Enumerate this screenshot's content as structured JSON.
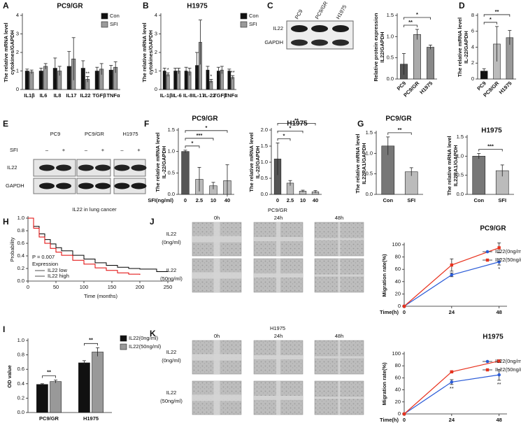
{
  "panel_labels": [
    "A",
    "B",
    "C",
    "D",
    "E",
    "F",
    "G",
    "H",
    "I",
    "J",
    "K"
  ],
  "blots": {
    "C": {
      "lanes": [
        "PC9",
        "PC9/GR",
        "H1975"
      ],
      "proteins": [
        "IL22",
        "GAPDH"
      ]
    },
    "E": {
      "lanes": [
        "PC9",
        "PC9/GR",
        "H1975"
      ],
      "treatment_label": "SFI",
      "treatment": [
        "–",
        "+",
        "–",
        "+",
        "–",
        "+"
      ],
      "proteins": [
        "IL22",
        "GAPDH"
      ]
    }
  },
  "wound_healing": [
    {
      "cell_line": "PC9/GR",
      "times": [
        "0h",
        "24h",
        "48h"
      ],
      "rows": [
        [
          "IL22",
          "(0ng/ml)"
        ],
        [
          "IL22",
          "(50ng/ml)"
        ]
      ]
    },
    {
      "cell_line": "H1975",
      "times": [
        "0h",
        "24h",
        "48h"
      ],
      "rows": [
        [
          "IL22",
          "(0ng/ml)"
        ],
        [
          "IL22",
          "(50ng/ml)"
        ]
      ]
    }
  ],
  "chart_data": [
    {
      "type": "bar",
      "title": "PC9/GR",
      "ylabel": [
        "The relative mRNA level",
        "cytokines/GAPDH"
      ],
      "categories": [
        "IL1β",
        "IL6",
        "IL8",
        "IL17",
        "IL22",
        "TGFβ",
        "TNFα"
      ],
      "series": [
        {
          "name": "Con",
          "color": "#111111",
          "values": [
            1.0,
            1.0,
            1.15,
            1.25,
            1.15,
            1.0,
            1.05
          ],
          "errors": [
            0.1,
            0.15,
            0.55,
            0.8,
            0.4,
            0.2,
            0.25
          ]
        },
        {
          "name": "SFI",
          "color": "#9a9a9a",
          "values": [
            0.95,
            1.25,
            1.0,
            1.65,
            0.55,
            1.1,
            1.2
          ],
          "errors": [
            0.1,
            0.15,
            0.25,
            1.15,
            0.15,
            0.3,
            0.3
          ]
        }
      ],
      "ylim": [
        0,
        4
      ],
      "yticks": [
        0,
        1,
        2,
        3,
        4
      ],
      "legend": "upper right",
      "annotation_style": "star",
      "annotations": [
        {
          "category": "IL22",
          "label": "**"
        }
      ]
    },
    {
      "type": "bar",
      "title": "H1975",
      "ylabel": [
        "The relative mRNA level",
        "cytokines/GAPDH"
      ],
      "categories": [
        "IL-1β",
        "IL-6",
        "IL-8",
        "IL-17",
        "IL-22",
        "TGFβ",
        "TNFα"
      ],
      "series": [
        {
          "name": "Con",
          "color": "#111111",
          "values": [
            1.0,
            1.0,
            1.0,
            1.3,
            1.05,
            1.0,
            1.0
          ],
          "errors": [
            0.15,
            0.15,
            0.2,
            0.7,
            0.2,
            0.2,
            0.1
          ]
        },
        {
          "name": "SFI",
          "color": "#9a9a9a",
          "values": [
            0.8,
            1.0,
            0.95,
            2.55,
            0.45,
            1.05,
            0.65
          ],
          "errors": [
            0.1,
            0.15,
            0.2,
            1.2,
            0.1,
            0.2,
            0.1
          ]
        }
      ],
      "ylim": [
        0,
        4
      ],
      "yticks": [
        0,
        1,
        2,
        3,
        4
      ],
      "legend": "outside right",
      "annotation_style": "star",
      "annotations": [
        {
          "category": "IL-1β",
          "label": "*"
        },
        {
          "category": "IL-22",
          "label": "*"
        },
        {
          "category": "TNFα",
          "label": "**"
        }
      ]
    },
    {
      "type": "bar",
      "ylabel": [
        "Relative protein expression",
        "IL22/GAPDH"
      ],
      "categories": [
        "PC9",
        "PC9/GR",
        "H1975"
      ],
      "values": [
        0.35,
        1.05,
        0.75
      ],
      "errors": [
        0.25,
        0.12,
        0.05
      ],
      "colors": [
        "#555555",
        "#aaaaaa",
        "#888888"
      ],
      "ylim": [
        0,
        1.5
      ],
      "yticks": [
        {
          "value": 0,
          "label": "0.0"
        },
        0.5,
        {
          "value": 1,
          "label": "1.0"
        },
        1.5
      ],
      "annotation_style": "bracket",
      "annotations": [
        {
          "category": "PC9/GR",
          "label": "**"
        },
        {
          "category": "H1975",
          "label": "*"
        }
      ]
    },
    {
      "type": "bar",
      "ylabel": [
        "The relative mRNA level",
        "IL-22/GAPDH"
      ],
      "categories": [
        "PC9",
        "PC9/GR",
        "H1975"
      ],
      "values": [
        1.0,
        4.4,
        5.2
      ],
      "errors": [
        0.3,
        2.2,
        0.9
      ],
      "colors": [
        "#111111",
        "#bbbbbb",
        "#999999"
      ],
      "ylim": [
        0,
        8
      ],
      "yticks": [
        0,
        2,
        4,
        6,
        8
      ],
      "annotation_style": "bracket",
      "annotations": [
        {
          "category": "PC9/GR",
          "label": "*"
        },
        {
          "category": "H1975",
          "label": "**"
        }
      ]
    },
    {
      "type": "bar",
      "title": "PC9/GR",
      "ylabel": [
        "The relative mRNA level",
        "IL-22/GAPDH"
      ],
      "xlabel": "SFI(ng/ml)",
      "categories": [
        "0",
        "2.5",
        "10",
        "40"
      ],
      "values": [
        1.0,
        0.35,
        0.2,
        0.32
      ],
      "errors": [
        0.03,
        0.28,
        0.08,
        0.37
      ],
      "colors": [
        "#555555",
        "#bbbbbb",
        "#bbbbbb",
        "#bbbbbb"
      ],
      "ylim": [
        0,
        1.5
      ],
      "yticks": [
        {
          "value": 0,
          "label": "0.0"
        },
        0.5,
        {
          "value": 1,
          "label": "1.0"
        },
        1.5
      ],
      "annotation_style": "bracket",
      "annotations": [
        {
          "category": "2.5",
          "label": "*"
        },
        {
          "category": "10",
          "label": "***"
        },
        {
          "category": "40",
          "label": "*"
        }
      ]
    },
    {
      "type": "bar",
      "title": "H1975",
      "ylabel": [
        "The relative mRNA level",
        "IL-22/GAPDH"
      ],
      "categories": [
        "0",
        "2.5",
        "10",
        "40"
      ],
      "values": [
        1.1,
        0.35,
        0.1,
        0.08
      ],
      "errors": [
        0.5,
        0.08,
        0.03,
        0.04
      ],
      "colors": [
        "#555555",
        "#bbbbbb",
        "#bbbbbb",
        "#bbbbbb"
      ],
      "ylim": [
        0,
        2
      ],
      "yticks": [
        {
          "value": 0,
          "label": "0.0"
        },
        0.5,
        {
          "value": 1,
          "label": "1.0"
        },
        1.5,
        {
          "value": 2,
          "label": "2.0"
        }
      ],
      "annotation_style": "bracket",
      "annotations": [
        {
          "category": "2.5",
          "label": "*"
        },
        {
          "category": "10",
          "label": "*"
        },
        {
          "category": "40",
          "label": "**"
        }
      ]
    },
    {
      "type": "bar",
      "title": "PC9/GR",
      "ylabel": [
        "The relative mRNA level",
        "IL22RA1/GAPDH"
      ],
      "categories": [
        "Con",
        "SFI"
      ],
      "values": [
        1.18,
        0.55
      ],
      "errors": [
        0.22,
        0.1
      ],
      "colors": [
        "#777777",
        "#bbbbbb"
      ],
      "ylim": [
        0,
        1.5
      ],
      "yticks": [
        {
          "value": 0,
          "label": "0.0"
        },
        0.5,
        {
          "value": 1,
          "label": "1.0"
        },
        1.5
      ],
      "annotation_style": "bracket",
      "annotations": [
        {
          "category": "SFI",
          "label": "**"
        }
      ]
    },
    {
      "type": "bar",
      "title": "H1975",
      "ylabel": [
        "The relative mRNA level",
        "IL22RA1/GAPDH"
      ],
      "categories": [
        "Con",
        "SFI"
      ],
      "values": [
        1.0,
        0.62
      ],
      "errors": [
        0.07,
        0.15
      ],
      "colors": [
        "#777777",
        "#bbbbbb"
      ],
      "ylim": [
        0,
        1.5
      ],
      "yticks": [
        {
          "value": 0,
          "label": "0.0"
        },
        0.5,
        {
          "value": 1,
          "label": "1.0"
        },
        1.5
      ],
      "annotation_style": "bracket",
      "annotations": [
        {
          "category": "SFI",
          "label": "***"
        }
      ]
    },
    {
      "type": "line",
      "title": "IL22 in lung cancer",
      "xlabel": "Time (months)",
      "ylabel": [
        "Probability"
      ],
      "x": [
        0,
        10,
        20,
        30,
        40,
        50,
        60,
        80,
        100,
        120,
        140,
        160,
        180,
        200,
        230,
        250
      ],
      "series": [
        {
          "name": "IL22 low",
          "color": "#000000",
          "values": [
            1.0,
            0.87,
            0.75,
            0.66,
            0.59,
            0.53,
            0.48,
            0.41,
            0.35,
            0.29,
            0.25,
            0.22,
            0.2,
            0.19,
            0.15,
            0.15
          ]
        },
        {
          "name": "IL22 high",
          "color": "#e00000",
          "values": [
            1.0,
            0.84,
            0.7,
            0.6,
            0.52,
            0.46,
            0.41,
            0.33,
            0.27,
            0.21,
            0.17,
            0.13,
            0.11,
            0.1,
            null,
            null
          ]
        }
      ],
      "xlim": [
        0,
        260
      ],
      "ylim": [
        0,
        1
      ],
      "xticks": [
        0,
        50,
        100,
        150,
        200,
        250
      ],
      "yticks": [
        {
          "value": 0,
          "label": "0.0"
        },
        0.2,
        0.4,
        0.6,
        0.8,
        {
          "value": 1,
          "label": "1.0"
        }
      ],
      "step": true,
      "note": "P = 0.007",
      "legend_title": "Expression",
      "legend": "lower left"
    },
    {
      "type": "bar",
      "ylabel": [
        "OD value"
      ],
      "categories": [
        "PC9/GR",
        "H1975"
      ],
      "series": [
        {
          "name": "IL22(0ng/ml)",
          "color": "#111111",
          "values": [
            0.39,
            0.69
          ],
          "errors": [
            0.01,
            0.03
          ]
        },
        {
          "name": "IL22(50ng/ml)",
          "color": "#999999",
          "values": [
            0.43,
            0.84
          ],
          "errors": [
            0.02,
            0.06
          ]
        }
      ],
      "ylim": [
        0,
        1
      ],
      "yticks": [
        {
          "value": 0,
          "label": "0.0"
        },
        0.2,
        0.4,
        0.6,
        0.8,
        {
          "value": 1,
          "label": "1.0"
        }
      ],
      "legend": "outside right",
      "annotation_style": "bracket",
      "annotations": [
        {
          "category": "PC9/GR",
          "label": "**"
        },
        {
          "category": "H1975",
          "label": "**"
        }
      ]
    },
    {
      "type": "line",
      "title": "PC9/GR",
      "ylabel": [
        "Migration rate(%)"
      ],
      "xlabel": "Time(h)",
      "x": [
        0,
        24,
        48
      ],
      "series": [
        {
          "name": "IL22(0ng/ml)",
          "color": "#2a5bd7",
          "values": [
            0,
            51,
            72
          ],
          "errors": [
            0,
            3,
            5
          ]
        },
        {
          "name": "IL22(50ng/ml)",
          "color": "#e8321e",
          "values": [
            0,
            67,
            95
          ],
          "errors": [
            0,
            10,
            8
          ]
        }
      ],
      "xlim": [
        0,
        52
      ],
      "ylim": [
        0,
        100
      ],
      "xticks": [
        0,
        24,
        48
      ],
      "yticks": [
        0,
        20,
        40,
        60,
        80,
        100
      ],
      "markers": true,
      "legend": "upper right",
      "annotations": [
        {
          "x": 48,
          "label": "*"
        }
      ]
    },
    {
      "type": "line",
      "title": "H1975",
      "ylabel": [
        "Migration rate(%)"
      ],
      "xlabel": "Time(h)",
      "x": [
        0,
        24,
        48
      ],
      "series": [
        {
          "name": "IL22(0ng/ml)",
          "color": "#2a5bd7",
          "values": [
            0,
            53,
            65
          ],
          "errors": [
            0,
            4,
            9
          ]
        },
        {
          "name": "IL22(50ng/ml)",
          "color": "#e8321e",
          "values": [
            0,
            70,
            88
          ],
          "errors": [
            0,
            1,
            2
          ]
        }
      ],
      "xlim": [
        0,
        52
      ],
      "ylim": [
        0,
        100
      ],
      "xticks": [
        0,
        24,
        48
      ],
      "yticks": [
        0,
        20,
        40,
        60,
        80,
        100
      ],
      "markers": true,
      "legend": "upper right",
      "annotations": [
        {
          "x": 24,
          "label": "**"
        },
        {
          "x": 48,
          "label": "**"
        }
      ]
    }
  ]
}
